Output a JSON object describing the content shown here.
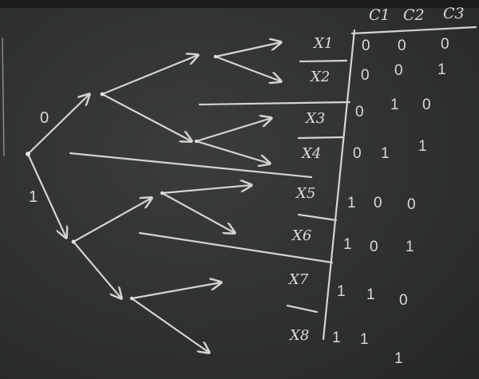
{
  "board": {
    "chalk_color": "#eceae4",
    "board_color": "#2e3130",
    "tree": {
      "edge_labels": [
        "0",
        "1"
      ]
    },
    "columns": [
      "C1",
      "C2",
      "C3"
    ],
    "rows": [
      {
        "label": "X1",
        "bits": [
          "0",
          "0",
          "0"
        ]
      },
      {
        "label": "X2",
        "bits": [
          "0",
          "0",
          "1"
        ]
      },
      {
        "label": "X3",
        "bits": [
          "0",
          "1",
          "0"
        ]
      },
      {
        "label": "X4",
        "bits": [
          "0",
          "1",
          "1"
        ]
      },
      {
        "label": "X5",
        "bits": [
          "1",
          "0",
          "0"
        ]
      },
      {
        "label": "X6",
        "bits": [
          "1",
          "0",
          "1"
        ]
      },
      {
        "label": "X7",
        "bits": [
          "1",
          "1",
          "0"
        ]
      },
      {
        "label": "X8",
        "bits": [
          "1",
          "1",
          "1"
        ]
      }
    ]
  }
}
